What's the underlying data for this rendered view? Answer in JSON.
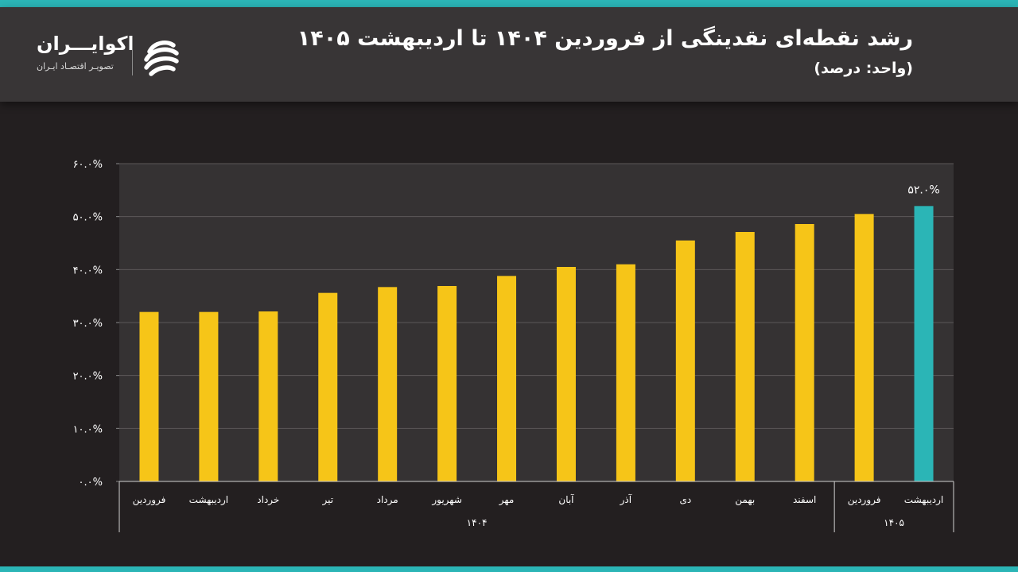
{
  "header": {
    "title": "رشد نقطه‌ای نقدینگی از فروردین ۱۴۰۴ تا اردیبهشت ۱۴۰۵",
    "subtitle": "(واحد: درصد)"
  },
  "logo": {
    "name": "اکوایـــران",
    "tagline": "تصویـر اقتصـاد ایـران",
    "icon": "ecoiran-logo-icon"
  },
  "colors": {
    "bar_default": "#f6c518",
    "bar_highlight": "#2bb5b6",
    "accent_strip": "#2bb5b6",
    "plot_background": "#353233"
  },
  "chart_data": {
    "type": "bar",
    "categories": [
      "فروردین",
      "اردیبهشت",
      "خرداد",
      "تیر",
      "مرداد",
      "شهریور",
      "مهر",
      "آبان",
      "آذر",
      "دی",
      "بهمن",
      "اسفند",
      "فروردین",
      "اردیبهشت"
    ],
    "groups": [
      {
        "label": "۱۴۰۴",
        "start": 0,
        "end": 11
      },
      {
        "label": "۱۴۰۵",
        "start": 12,
        "end": 13
      }
    ],
    "values": [
      32.0,
      32.0,
      32.1,
      35.6,
      36.7,
      36.9,
      38.8,
      40.5,
      41.0,
      45.5,
      47.1,
      48.6,
      50.5,
      52.0
    ],
    "highlight_index": 13,
    "data_labels": [
      {
        "index": 13,
        "text": "۵۲.۰%"
      }
    ],
    "yticks": [
      {
        "value": 0,
        "label": "۰.۰%"
      },
      {
        "value": 10,
        "label": "۱۰.۰%"
      },
      {
        "value": 20,
        "label": "۲۰.۰%"
      },
      {
        "value": 30,
        "label": "۳۰.۰%"
      },
      {
        "value": 40,
        "label": "۴۰.۰%"
      },
      {
        "value": 50,
        "label": "۵۰.۰%"
      },
      {
        "value": 60,
        "label": "۶۰.۰%"
      }
    ],
    "ylim": [
      0,
      60
    ],
    "grid": true,
    "legend": "none"
  }
}
